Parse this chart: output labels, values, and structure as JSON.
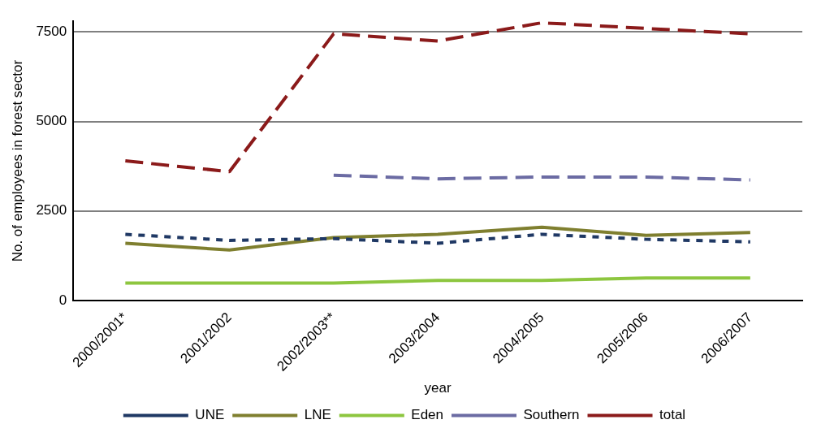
{
  "chart_data": {
    "type": "line",
    "xlabel": "year",
    "ylabel": "No. of employees in forest sector",
    "categories": [
      "2000/2001*",
      "2001/2002",
      "2002/2003**",
      "2003/2004",
      "2004/2005",
      "2005/2006",
      "2006/2007"
    ],
    "series": [
      {
        "name": "UNE",
        "color": "#1f3864",
        "line_style": "dotted",
        "values": [
          1850,
          1680,
          1730,
          1600,
          1850,
          1710,
          1640
        ]
      },
      {
        "name": "LNE",
        "color": "#7f7f2f",
        "line_style": "solid",
        "values": [
          1600,
          1410,
          1760,
          1850,
          2050,
          1820,
          1900
        ]
      },
      {
        "name": "Eden",
        "color": "#8dc63f",
        "line_style": "solid",
        "values": [
          490,
          490,
          490,
          560,
          560,
          630,
          630
        ]
      },
      {
        "name": "Southern",
        "color": "#6b6ba3",
        "line_style": "dashed",
        "values": [
          null,
          null,
          3500,
          3400,
          3450,
          3450,
          3370
        ]
      },
      {
        "name": "total",
        "color": "#8b1a1a",
        "line_style": "dashed",
        "values": [
          3900,
          3600,
          7450,
          7250,
          7760,
          7600,
          7450
        ]
      }
    ],
    "ylim": [
      0,
      7800
    ],
    "yticks": [
      0,
      2500,
      5000,
      7500
    ],
    "grid": "y",
    "legend": "bottom",
    "marker": "none"
  }
}
